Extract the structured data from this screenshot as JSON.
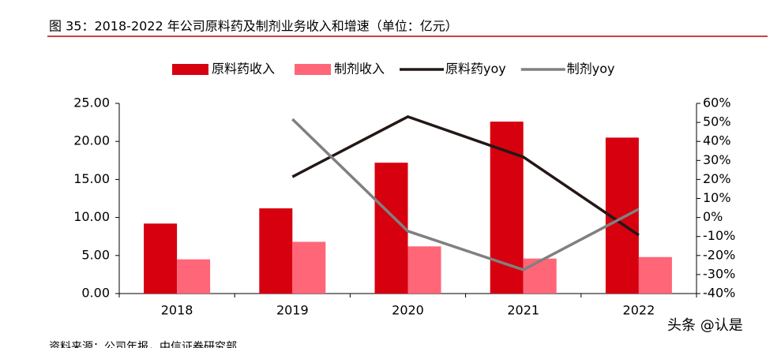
{
  "chart_data": {
    "type": "bar_line",
    "title": "图 35：2018-2022 年公司原料药及制剂业务收入和增速（单位：亿元）",
    "source": "资料来源：公司年报，中信证券研究部",
    "watermark": "头条 @认是",
    "categories": [
      "2018",
      "2019",
      "2020",
      "2021",
      "2022"
    ],
    "series": [
      {
        "name": "原料药收入",
        "type": "bar",
        "color": "#d7000f",
        "values": [
          9.2,
          11.2,
          17.2,
          22.6,
          20.5
        ]
      },
      {
        "name": "制剂收入",
        "type": "bar",
        "color": "#ff6678",
        "values": [
          4.5,
          6.8,
          6.2,
          4.6,
          4.8
        ]
      },
      {
        "name": "原料药yoy",
        "type": "line",
        "axis": "y2",
        "color": "#231815",
        "values": [
          null,
          21.4,
          53,
          31.8,
          -9.3
        ]
      },
      {
        "name": "制剂yoy",
        "type": "line",
        "axis": "y2",
        "color": "#808080",
        "values": [
          null,
          51.7,
          -7.2,
          -27.5,
          4.4
        ]
      }
    ],
    "ylim": [
      0,
      25
    ],
    "yticks": [
      {
        "value": 0,
        "label": "0.00"
      },
      {
        "value": 5,
        "label": "5.00"
      },
      {
        "value": 10,
        "label": "10.00"
      },
      {
        "value": 15,
        "label": "15.00"
      },
      {
        "value": 20,
        "label": "20.00"
      },
      {
        "value": 25,
        "label": "25.00"
      }
    ],
    "y2lim": [
      -40,
      60
    ],
    "y2ticks": [
      {
        "value": -40,
        "label": "-40%"
      },
      {
        "value": -30,
        "label": "-30%"
      },
      {
        "value": -20,
        "label": "-20%"
      },
      {
        "value": -10,
        "label": "-10%"
      },
      {
        "value": 0,
        "label": "0%"
      },
      {
        "value": 10,
        "label": "10%"
      },
      {
        "value": 20,
        "label": "20%"
      },
      {
        "value": 30,
        "label": "30%"
      },
      {
        "value": 40,
        "label": "40%"
      },
      {
        "value": 50,
        "label": "50%"
      },
      {
        "value": 60,
        "label": "60%"
      }
    ],
    "legend": "top"
  }
}
